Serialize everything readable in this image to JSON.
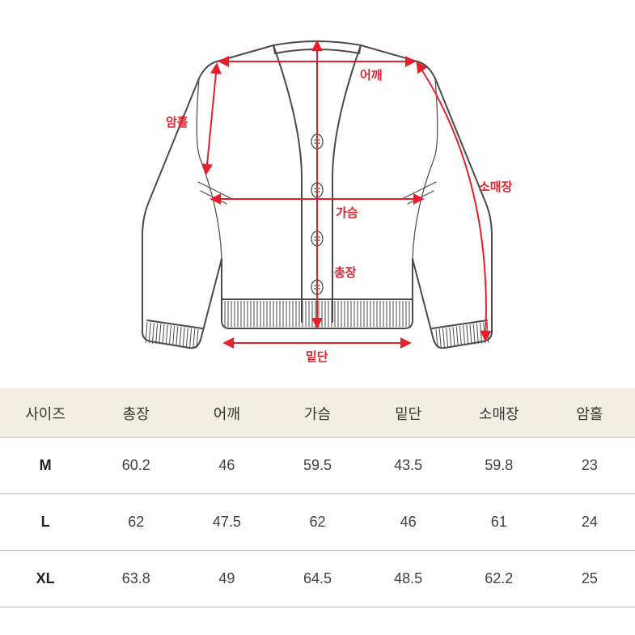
{
  "diagram": {
    "garment_stroke": "#4a4a4a",
    "garment_stroke_width": 2,
    "measure_stroke": "#e51f2b",
    "measure_stroke_width": 2,
    "label_color": "#e51f2b",
    "button_fill": "#ffffff",
    "labels": {
      "shoulder": "어깨",
      "armhole": "암홀",
      "sleeve": "소매장",
      "chest": "가슴",
      "length": "총장",
      "hem": "밑단"
    }
  },
  "table": {
    "header_bg": "#f2eee3",
    "border_color": "#bdbdbd",
    "columns": [
      "사이즈",
      "총장",
      "어깨",
      "가슴",
      "밑단",
      "소매장",
      "암홀"
    ],
    "rows": [
      [
        "M",
        "60.2",
        "46",
        "59.5",
        "43.5",
        "59.8",
        "23"
      ],
      [
        "L",
        "62",
        "47.5",
        "62",
        "46",
        "61",
        "24"
      ],
      [
        "XL",
        "63.8",
        "49",
        "64.5",
        "48.5",
        "62.2",
        "25"
      ]
    ]
  }
}
